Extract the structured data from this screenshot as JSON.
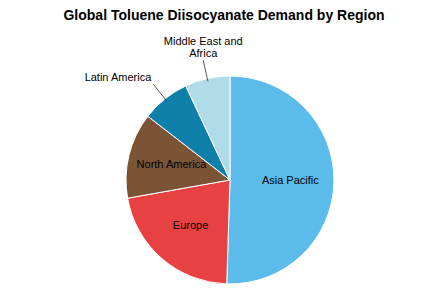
{
  "chart_data": {
    "type": "pie",
    "title": "Global Toluene Diisocyanate Demand by Region",
    "categories": [
      "Asia Pacific",
      "Europe",
      "North America",
      "Latin America",
      "Middle East and Africa"
    ],
    "values": [
      50.5,
      21.7,
      13.3,
      7.5,
      7
    ],
    "colors": [
      "#5bbcec",
      "#e84141",
      "#7b5436",
      "#0f80aa",
      "#b0dcea"
    ]
  }
}
